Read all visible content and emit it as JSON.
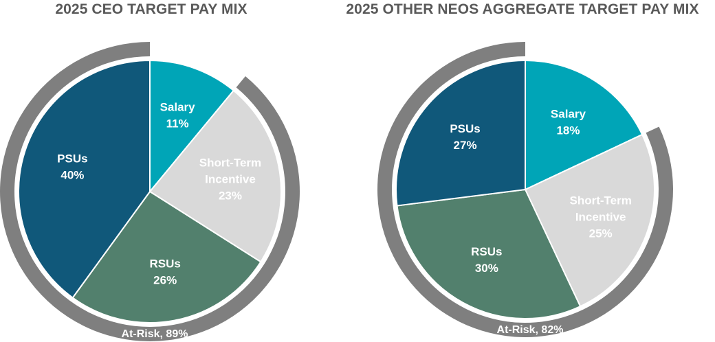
{
  "chart_data": [
    {
      "type": "pie",
      "title": "2025 CEO TARGET PAY MIX",
      "slices": [
        {
          "label_lines": [
            "Salary"
          ],
          "value": 11,
          "pct_label": "11%",
          "color": "#00A5B7",
          "text_color": "#ffffff"
        },
        {
          "label_lines": [
            "Short-Term",
            "Incentive"
          ],
          "value": 23,
          "pct_label": "23%",
          "color": "#D9D9D9",
          "text_color": "#ffffff"
        },
        {
          "label_lines": [
            "RSUs"
          ],
          "value": 26,
          "pct_label": "26%",
          "color": "#52806D",
          "text_color": "#ffffff"
        },
        {
          "label_lines": [
            "PSUs"
          ],
          "value": 40,
          "pct_label": "40%",
          "color": "#10587A",
          "text_color": "#ffffff"
        }
      ],
      "ring": {
        "label": "At-Risk, 89%",
        "value": 89,
        "color": "#7F7F7F"
      }
    },
    {
      "type": "pie",
      "title": "2025 OTHER NEOS AGGREGATE TARGET PAY MIX",
      "slices": [
        {
          "label_lines": [
            "Salary"
          ],
          "value": 18,
          "pct_label": "18%",
          "color": "#00A5B7",
          "text_color": "#ffffff"
        },
        {
          "label_lines": [
            "Short-Term",
            "Incentive"
          ],
          "value": 25,
          "pct_label": "25%",
          "color": "#D9D9D9",
          "text_color": "#ffffff"
        },
        {
          "label_lines": [
            "RSUs"
          ],
          "value": 30,
          "pct_label": "30%",
          "color": "#52806D",
          "text_color": "#ffffff"
        },
        {
          "label_lines": [
            "PSUs"
          ],
          "value": 27,
          "pct_label": "27%",
          "color": "#10587A",
          "text_color": "#ffffff"
        }
      ],
      "ring": {
        "label": "At-Risk, 82%",
        "value": 82,
        "color": "#7F7F7F"
      }
    }
  ]
}
